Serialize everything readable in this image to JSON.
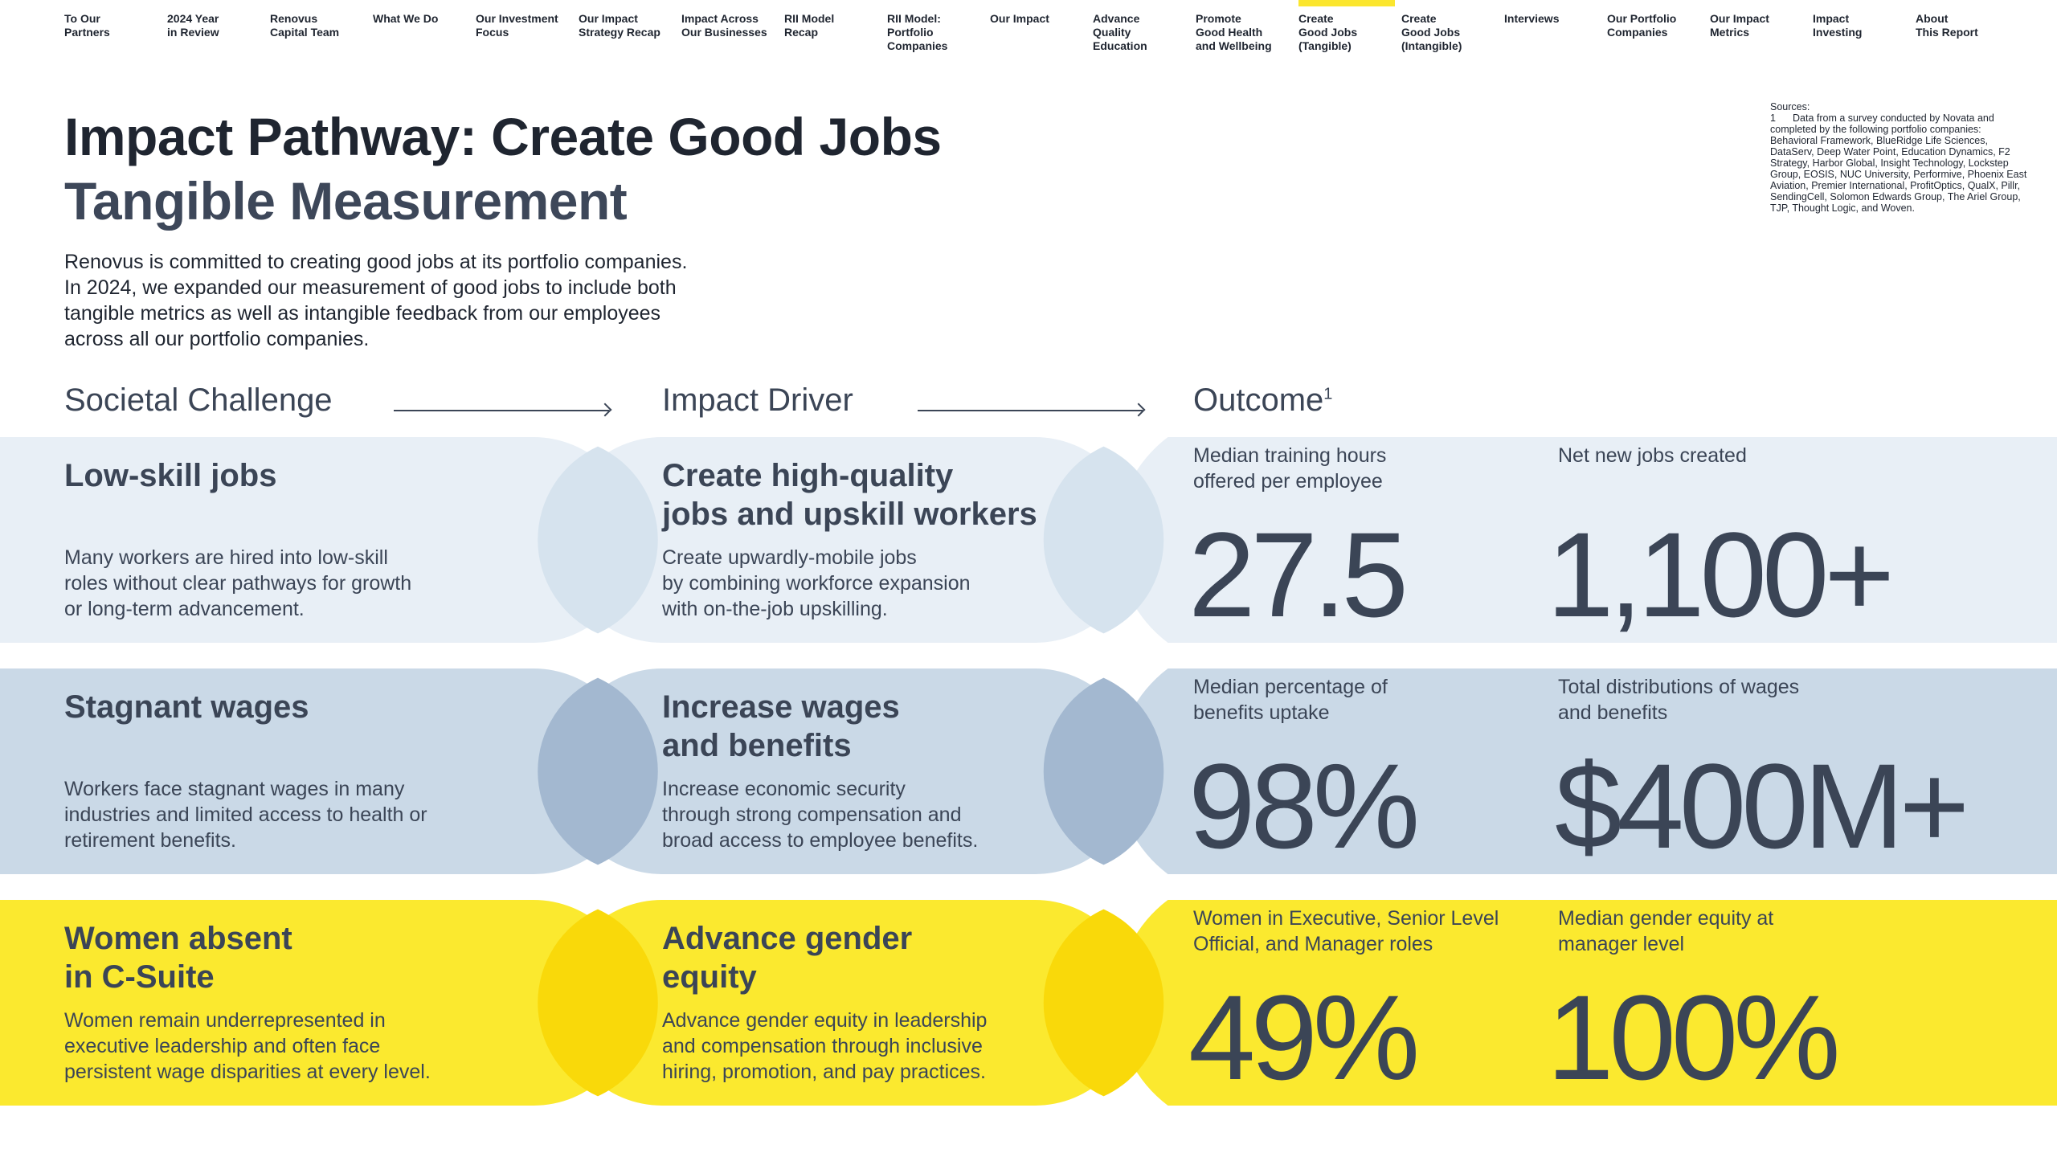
{
  "nav": {
    "items": [
      {
        "label": "To Our\nPartners"
      },
      {
        "label": "2024 Year\nin Review"
      },
      {
        "label": "Renovus\nCapital Team"
      },
      {
        "label": "What We Do"
      },
      {
        "label": "Our Investment\nFocus"
      },
      {
        "label": "Our Impact\nStrategy Recap"
      },
      {
        "label": "Impact Across\nOur Businesses"
      },
      {
        "label": "RII Model\nRecap"
      },
      {
        "label": "RII Model:\nPortfolio\nCompanies"
      },
      {
        "label": "Our Impact"
      },
      {
        "label": "Advance\nQuality\nEducation"
      },
      {
        "label": "Promote\nGood Health\nand Wellbeing"
      },
      {
        "label": "Create\nGood Jobs\n(Tangible)"
      },
      {
        "label": "Create\nGood Jobs\n(Intangible)"
      },
      {
        "label": "Interviews"
      },
      {
        "label": "Our Portfolio\nCompanies"
      },
      {
        "label": "Our Impact\nMetrics"
      },
      {
        "label": "Impact\nInvesting"
      },
      {
        "label": "About\nThis Report"
      }
    ],
    "active_index": 12,
    "active_color": "#fbe62e"
  },
  "header": {
    "title": "Impact Pathway: Create Good Jobs",
    "subtitle": "Tangible Measurement",
    "intro": "Renovus is committed to creating good jobs at its portfolio companies. In 2024, we expanded our measurement of good jobs to include both tangible metrics as well as intangible feedback from our employees across all our portfolio companies."
  },
  "sources": {
    "label": "Sources:",
    "items": [
      {
        "num": "1",
        "text": "Data from a survey conducted by Novata and completed by the following portfolio companies: Behavioral Framework, BlueRidge Life Sciences, DataServ, Deep Water Point, Education Dynamics, F2 Strategy, Harbor Global, Insight Technology, Lockstep Group, EOSIS, NUC University, Performive, Phoenix East Aviation, Premier International, ProfitOptics, QualX, Pillr, SendingCell, Solomon Edwards Group, The Ariel Group, TJP, Thought Logic, and Woven."
      }
    ]
  },
  "columns": {
    "challenge": "Societal Challenge",
    "driver": "Impact Driver",
    "outcome": "Outcome",
    "outcome_sup": "1"
  },
  "rows": [
    {
      "challenge_title": "Low-skill jobs",
      "challenge_desc": "Many workers are hired into low-skill\nroles without clear pathways for growth\nor long-term advancement.",
      "driver_title": "Create high-quality\njobs and upskill workers",
      "driver_desc": "Create upwardly-mobile jobs\nby combining workforce expansion\nwith on-the-job upskilling.",
      "metrics": [
        {
          "label": "Median training hours\noffered per employee",
          "value": "27.5"
        },
        {
          "label": "Net new jobs created",
          "value": "1,100+"
        }
      ],
      "colors": {
        "pill": "#e8eff6",
        "overlap": "#d6e3ee"
      }
    },
    {
      "challenge_title": "Stagnant wages",
      "challenge_desc": "Workers face stagnant wages in many\nindustries and limited access to health or\nretirement benefits.",
      "driver_title": "Increase wages\nand benefits",
      "driver_desc": "Increase economic security\nthrough strong compensation and\nbroad access to employee benefits.",
      "metrics": [
        {
          "label": "Median percentage of\nbenefits uptake",
          "value": "98%"
        },
        {
          "label": "Total distributions of wages\nand benefits",
          "value": "$400M+"
        }
      ],
      "colors": {
        "pill": "#cad9e7",
        "overlap": "#a3b8d0"
      }
    },
    {
      "challenge_title": "Women absent\nin C-Suite",
      "challenge_desc": "Women remain underrepresented in\nexecutive leadership and often face\npersistent wage disparities at every level.",
      "driver_title": "Advance gender\nequity",
      "driver_desc": "Advance gender equity in leadership\nand compensation through inclusive\nhiring, promotion, and pay practices.",
      "metrics": [
        {
          "label": "Women in Executive, Senior Level\nOfficial, and Manager roles",
          "value": "49%"
        },
        {
          "label": "Median gender equity at\nmanager level",
          "value": "100%"
        }
      ],
      "colors": {
        "pill": "#fbe92f",
        "overlap": "#f9d90a"
      }
    }
  ]
}
